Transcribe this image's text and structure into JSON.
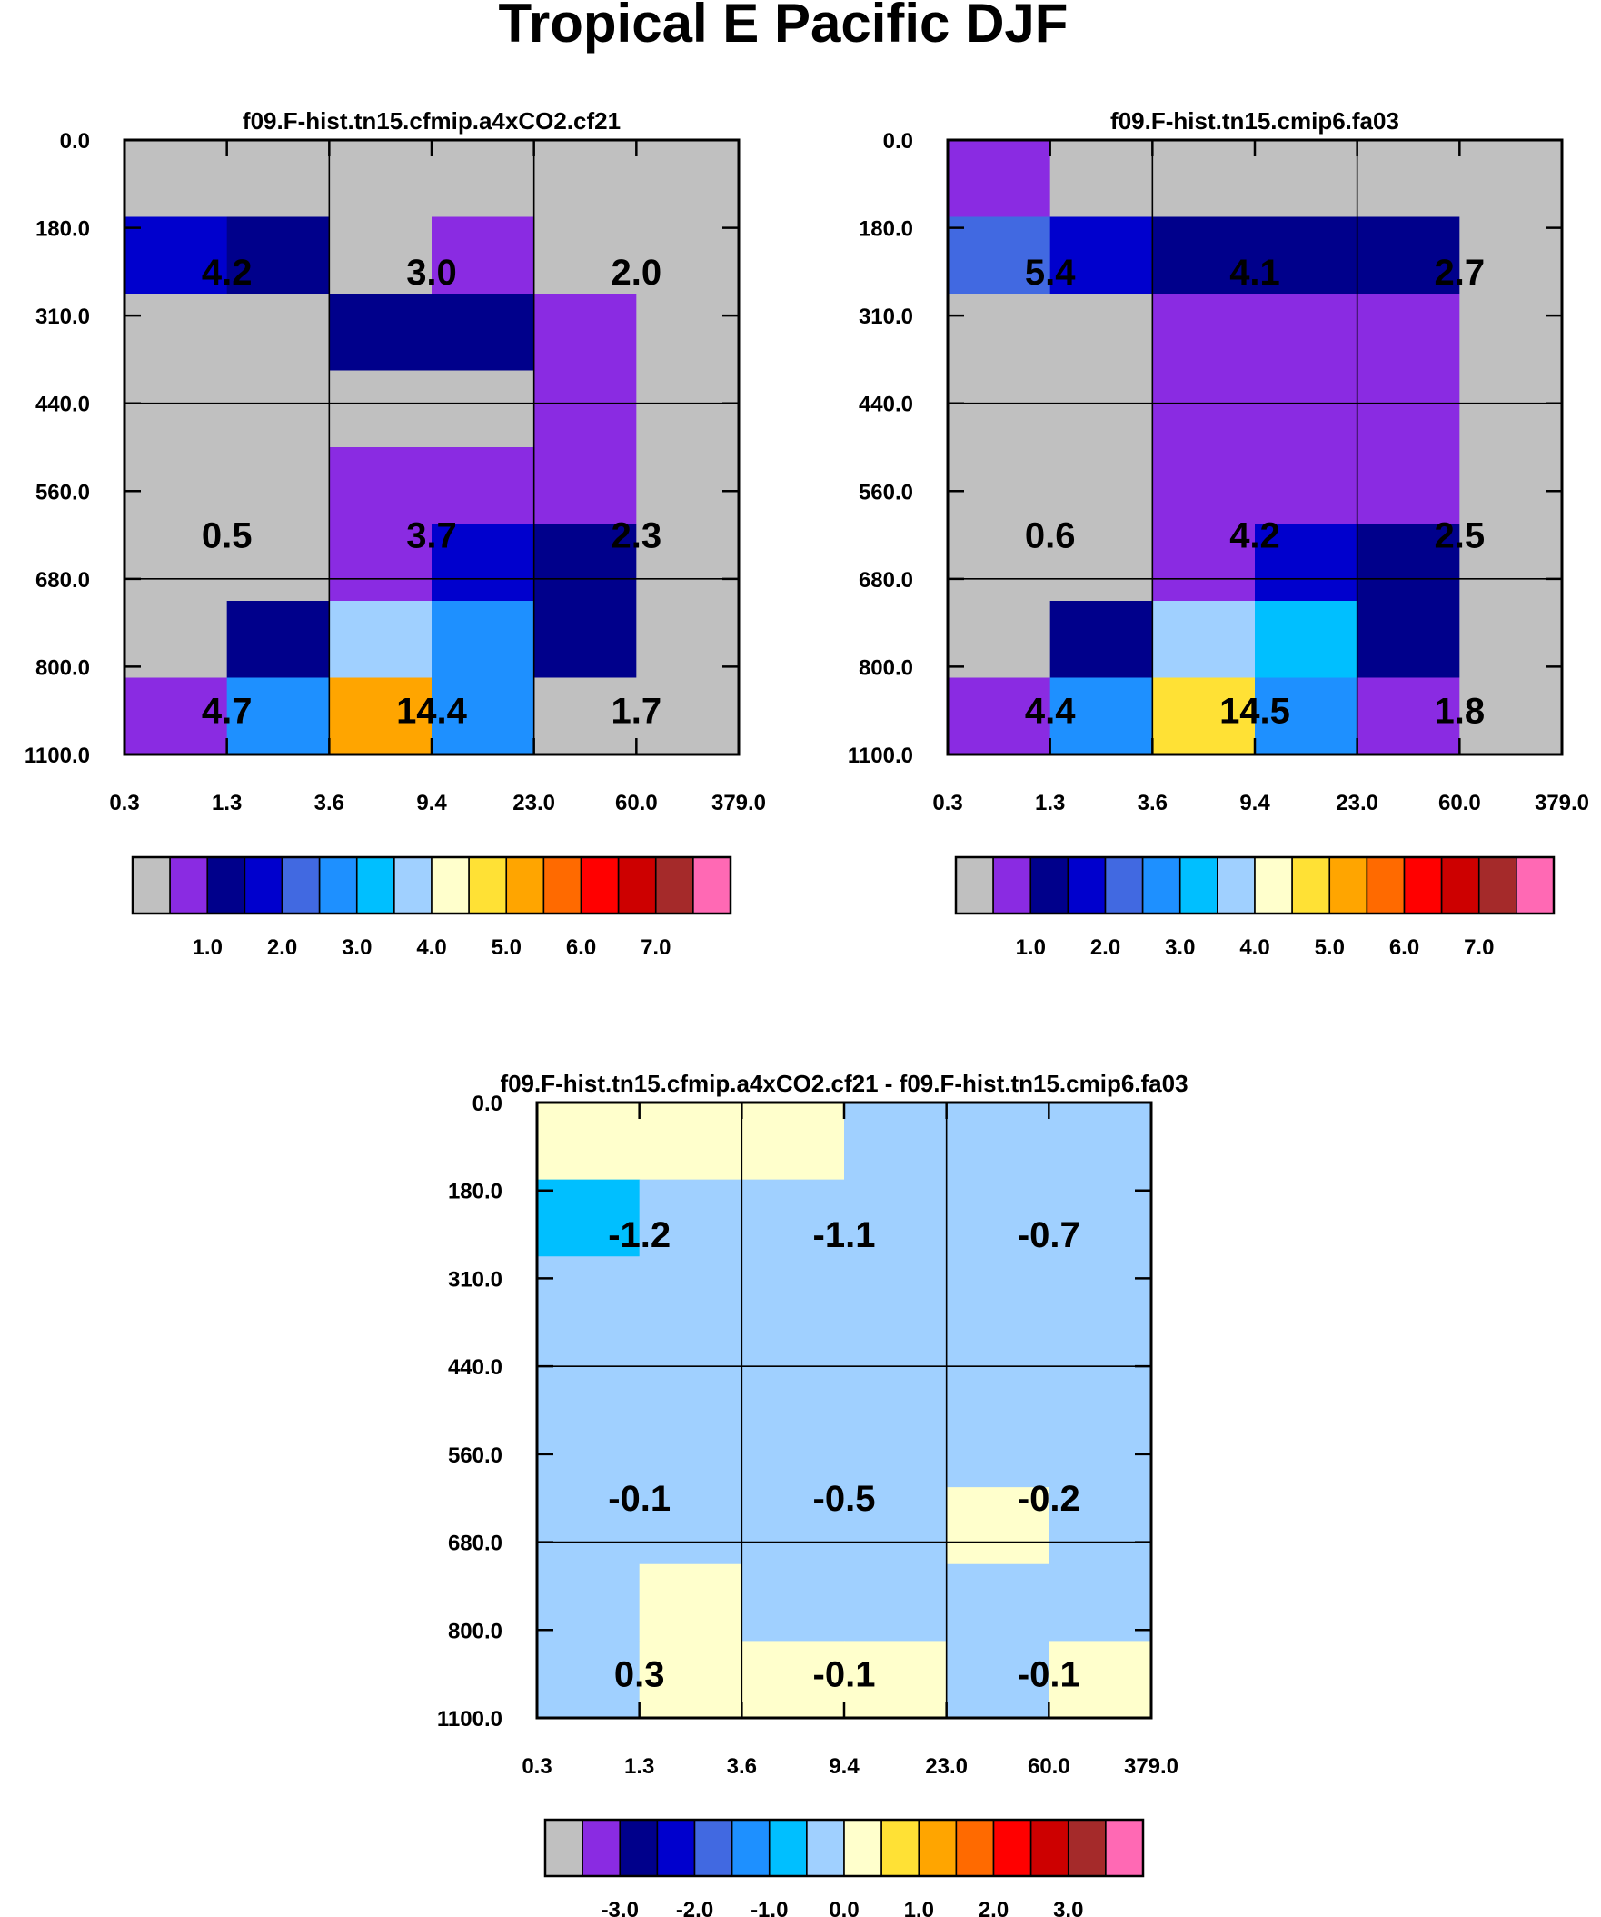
{
  "title": "Tropical E Pacific DJF",
  "chart_data": [
    {
      "type": "heatmap",
      "title": "f09.F-hist.tn15.cfmip.a4xCO2.cf21",
      "x_tick_labels": [
        "0.3",
        "1.3",
        "3.6",
        "9.4",
        "23.0",
        "60.0",
        "379.0"
      ],
      "y_tick_labels": [
        "0.0",
        "180.0",
        "310.0",
        "440.0",
        "560.0",
        "680.0",
        "800.0",
        "1100.0"
      ],
      "cell_color_levels": [
        [
          "gray",
          "gray",
          "gray",
          "gray",
          "gray",
          "gray"
        ],
        [
          "blue",
          "navy",
          "gray",
          "violet",
          "gray",
          "gray"
        ],
        [
          "gray",
          "gray",
          "navy",
          "navy",
          "violet",
          "gray"
        ],
        [
          "gray",
          "gray",
          "gray",
          "gray",
          "violet",
          "gray"
        ],
        [
          "gray",
          "gray",
          "violet",
          "violet",
          "violet",
          "gray"
        ],
        [
          "gray",
          "gray",
          "violet",
          "blue",
          "navy",
          "gray"
        ],
        [
          "gray",
          "navy",
          "lightblue",
          "dodgerblue",
          "navy",
          "gray"
        ],
        [
          "violet",
          "dodgerblue",
          "orange",
          "dodgerblue",
          "gray",
          "gray"
        ]
      ],
      "box_labels": [
        {
          "x": "1.3",
          "y": "245.0",
          "value": "4.2"
        },
        {
          "x": "9.4",
          "y": "245.0",
          "value": "3.0"
        },
        {
          "x": "60.0",
          "y": "245.0",
          "value": "2.0"
        },
        {
          "x": "1.3",
          "y": "560.0",
          "value": "0.5"
        },
        {
          "x": "9.4",
          "y": "560.0",
          "value": "3.7"
        },
        {
          "x": "60.0",
          "y": "560.0",
          "value": "2.3"
        },
        {
          "x": "1.3",
          "y": "800.0",
          "value": "4.7"
        },
        {
          "x": "9.4",
          "y": "800.0",
          "value": "14.4"
        },
        {
          "x": "60.0",
          "y": "800.0",
          "value": "1.7"
        }
      ],
      "colorbar": {
        "colors": [
          "#c0c0c0",
          "#8a2be2",
          "#00008b",
          "#0000cd",
          "#4169e1",
          "#1e90ff",
          "#00bfff",
          "#a0d0ff",
          "#ffffcc",
          "#ffe135",
          "#ffa500",
          "#ff6a00",
          "#ff0000",
          "#cd0000",
          "#a52a2a",
          "#ff69b4"
        ],
        "labels": [
          "1.0",
          "2.0",
          "3.0",
          "4.0",
          "5.0",
          "6.0",
          "7.0"
        ]
      }
    },
    {
      "type": "heatmap",
      "title": "f09.F-hist.tn15.cmip6.fa03",
      "x_tick_labels": [
        "0.3",
        "1.3",
        "3.6",
        "9.4",
        "23.0",
        "60.0",
        "379.0"
      ],
      "y_tick_labels": [
        "0.0",
        "180.0",
        "310.0",
        "440.0",
        "560.0",
        "680.0",
        "800.0",
        "1100.0"
      ],
      "cell_color_levels": [
        [
          "violet",
          "gray",
          "gray",
          "gray",
          "gray",
          "gray"
        ],
        [
          "royalblue",
          "blue",
          "navy",
          "navy",
          "navy",
          "gray"
        ],
        [
          "gray",
          "gray",
          "violet",
          "violet",
          "violet",
          "gray"
        ],
        [
          "gray",
          "gray",
          "violet",
          "violet",
          "violet",
          "gray"
        ],
        [
          "gray",
          "gray",
          "violet",
          "violet",
          "violet",
          "gray"
        ],
        [
          "gray",
          "gray",
          "violet",
          "blue",
          "navy",
          "gray"
        ],
        [
          "gray",
          "navy",
          "lightblue",
          "deepskyblue",
          "navy",
          "gray"
        ],
        [
          "violet",
          "dodgerblue",
          "gold",
          "dodgerblue",
          "violet",
          "gray"
        ]
      ],
      "box_labels": [
        {
          "x": "1.3",
          "y": "245.0",
          "value": "5.4"
        },
        {
          "x": "9.4",
          "y": "245.0",
          "value": "4.1"
        },
        {
          "x": "60.0",
          "y": "245.0",
          "value": "2.7"
        },
        {
          "x": "1.3",
          "y": "560.0",
          "value": "0.6"
        },
        {
          "x": "9.4",
          "y": "560.0",
          "value": "4.2"
        },
        {
          "x": "60.0",
          "y": "560.0",
          "value": "2.5"
        },
        {
          "x": "1.3",
          "y": "800.0",
          "value": "4.4"
        },
        {
          "x": "9.4",
          "y": "800.0",
          "value": "14.5"
        },
        {
          "x": "60.0",
          "y": "800.0",
          "value": "1.8"
        }
      ],
      "colorbar": {
        "colors": [
          "#c0c0c0",
          "#8a2be2",
          "#00008b",
          "#0000cd",
          "#4169e1",
          "#1e90ff",
          "#00bfff",
          "#a0d0ff",
          "#ffffcc",
          "#ffe135",
          "#ffa500",
          "#ff6a00",
          "#ff0000",
          "#cd0000",
          "#a52a2a",
          "#ff69b4"
        ],
        "labels": [
          "1.0",
          "2.0",
          "3.0",
          "4.0",
          "5.0",
          "6.0",
          "7.0"
        ]
      }
    },
    {
      "type": "heatmap",
      "title": "f09.F-hist.tn15.cfmip.a4xCO2.cf21 - f09.F-hist.tn15.cmip6.fa03",
      "x_tick_labels": [
        "0.3",
        "1.3",
        "3.6",
        "9.4",
        "23.0",
        "60.0",
        "379.0"
      ],
      "y_tick_labels": [
        "0.0",
        "180.0",
        "310.0",
        "440.0",
        "560.0",
        "680.0",
        "800.0",
        "1100.0"
      ],
      "cell_color_levels": [
        [
          "cream",
          "cream",
          "cream",
          "lightblue",
          "lightblue",
          "lightblue"
        ],
        [
          "deepskyblue",
          "lightblue",
          "lightblue",
          "lightblue",
          "lightblue",
          "lightblue"
        ],
        [
          "lightblue",
          "lightblue",
          "lightblue",
          "lightblue",
          "lightblue",
          "lightblue"
        ],
        [
          "lightblue",
          "lightblue",
          "lightblue",
          "lightblue",
          "lightblue",
          "lightblue"
        ],
        [
          "lightblue",
          "lightblue",
          "lightblue",
          "lightblue",
          "lightblue",
          "lightblue"
        ],
        [
          "lightblue",
          "lightblue",
          "lightblue",
          "lightblue",
          "cream",
          "lightblue"
        ],
        [
          "lightblue",
          "cream",
          "lightblue",
          "lightblue",
          "lightblue",
          "lightblue"
        ],
        [
          "lightblue",
          "cream",
          "cream",
          "cream",
          "lightblue",
          "cream"
        ]
      ],
      "box_labels": [
        {
          "x": "1.3",
          "y": "245.0",
          "value": "-1.2"
        },
        {
          "x": "9.4",
          "y": "245.0",
          "value": "-1.1"
        },
        {
          "x": "60.0",
          "y": "245.0",
          "value": "-0.7"
        },
        {
          "x": "1.3",
          "y": "560.0",
          "value": "-0.1"
        },
        {
          "x": "9.4",
          "y": "560.0",
          "value": "-0.5"
        },
        {
          "x": "60.0",
          "y": "560.0",
          "value": "-0.2"
        },
        {
          "x": "1.3",
          "y": "800.0",
          "value": "0.3"
        },
        {
          "x": "9.4",
          "y": "800.0",
          "value": "-0.1"
        },
        {
          "x": "60.0",
          "y": "800.0",
          "value": "-0.1"
        }
      ],
      "colorbar": {
        "colors": [
          "#c0c0c0",
          "#8a2be2",
          "#00008b",
          "#0000cd",
          "#4169e1",
          "#1e90ff",
          "#00bfff",
          "#a0d0ff",
          "#ffffcc",
          "#ffe135",
          "#ffa500",
          "#ff6a00",
          "#ff0000",
          "#cd0000",
          "#a52a2a",
          "#ff69b4"
        ],
        "labels": [
          "-3.0",
          "-2.0",
          "-1.0",
          "0.0",
          "1.0",
          "2.0",
          "3.0"
        ]
      }
    }
  ],
  "palette": {
    "gray": "#c0c0c0",
    "violet": "#8a2be2",
    "navy": "#00008b",
    "blue": "#0000cd",
    "royalblue": "#4169e1",
    "dodgerblue": "#1e90ff",
    "deepskyblue": "#00bfff",
    "lightblue": "#a0d0ff",
    "cream": "#ffffcc",
    "gold": "#ffe135",
    "orange": "#ffa500"
  }
}
